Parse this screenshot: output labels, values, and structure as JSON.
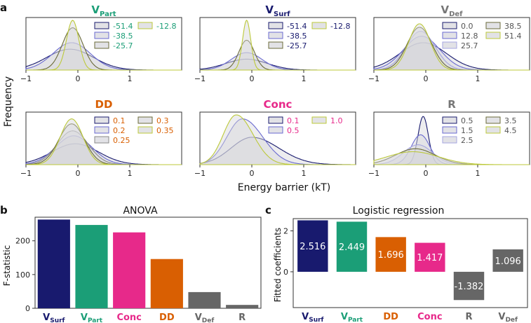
{
  "figure": {
    "ylabel_top": "Frequency",
    "xlabel_top": "Energy barrier (kT)"
  },
  "colors": {
    "navy": "#181a6e",
    "teal": "#1b9e77",
    "olive": "#6b6b3a",
    "orange": "#d95f02",
    "pink": "#e7298a",
    "gray": "#666666",
    "periwinkle": "#6a6ad0",
    "chartreuse": "#bcc93a",
    "fill": "#d6d6dc"
  },
  "chart_data": [
    {
      "panel_letter": "a",
      "type": "area",
      "title": "V_Part",
      "title_main": "V",
      "title_sub": "Part",
      "title_color": "#1b9e77",
      "xlim": [
        -1,
        2
      ],
      "x_ticks": [
        "−1",
        "0",
        "1"
      ],
      "legend_color": "#1b9e77",
      "series": [
        {
          "name": "-51.4",
          "center": -0.15,
          "width": 0.45,
          "peak": 0.42,
          "skew": 1.0,
          "color": "#181a6e"
        },
        {
          "name": "-38.5",
          "center": -0.12,
          "width": 0.36,
          "peak": 0.55,
          "skew": 1.0,
          "color": "#6a6ad0"
        },
        {
          "name": "-25.7",
          "center": -0.1,
          "width": 0.2,
          "peak": 0.85,
          "skew": 1.0,
          "color": "#6b6b3a"
        },
        {
          "name": "-12.8",
          "center": -0.1,
          "width": 0.12,
          "peak": 1.0,
          "skew": 1.0,
          "color": "#bcc93a"
        }
      ]
    },
    {
      "type": "area",
      "title": "V_Surf",
      "title_main": "V",
      "title_sub": "Surf",
      "title_color": "#181a6e",
      "xlim": [
        -1,
        2
      ],
      "x_ticks": [
        "−1",
        "0",
        "1"
      ],
      "legend_color": "#181a6e",
      "series": [
        {
          "name": "-51.4",
          "center": -0.1,
          "width": 0.4,
          "peak": 0.22,
          "skew": 1.0,
          "color": "#181a6e"
        },
        {
          "name": "-38.5",
          "center": -0.1,
          "width": 0.3,
          "peak": 0.35,
          "skew": 1.0,
          "color": "#6a6ad0"
        },
        {
          "name": "-25.7",
          "center": -0.1,
          "width": 0.15,
          "peak": 0.6,
          "skew": 1.0,
          "color": "#6b6b3a"
        },
        {
          "name": "-12.8",
          "center": -0.1,
          "width": 0.08,
          "peak": 1.0,
          "skew": 1.0,
          "color": "#bcc93a"
        }
      ]
    },
    {
      "type": "area",
      "title": "V_Def",
      "title_main": "V",
      "title_sub": "Def",
      "title_color": "#777777",
      "xlim": [
        -1,
        2
      ],
      "x_ticks": [
        "−1",
        "0",
        "1"
      ],
      "legend_color": "#555555",
      "series": [
        {
          "name": "0.0",
          "center": -0.05,
          "width": 0.45,
          "peak": 0.55,
          "skew": 1.0,
          "color": "#181a6e"
        },
        {
          "name": "12.8",
          "center": -0.08,
          "width": 0.35,
          "peak": 0.68,
          "skew": 1.0,
          "color": "#6a6ad0"
        },
        {
          "name": "25.7",
          "center": -0.1,
          "width": 0.28,
          "peak": 0.78,
          "skew": 1.0,
          "color": "#a5a5e0"
        },
        {
          "name": "38.5",
          "center": -0.12,
          "width": 0.24,
          "peak": 0.86,
          "skew": 1.0,
          "color": "#6b6b3a"
        },
        {
          "name": "51.4",
          "center": -0.12,
          "width": 0.21,
          "peak": 0.93,
          "skew": 1.0,
          "color": "#bcc93a"
        }
      ]
    },
    {
      "type": "area",
      "title": "DD",
      "title_main": "DD",
      "title_sub": "",
      "title_color": "#d95f02",
      "xlim": [
        -1,
        2
      ],
      "x_ticks": [
        "−1",
        "0",
        "1"
      ],
      "legend_color": "#d95f02",
      "series": [
        {
          "name": "0.1",
          "center": -0.05,
          "width": 0.45,
          "peak": 0.42,
          "skew": 1.0,
          "color": "#181a6e"
        },
        {
          "name": "0.2",
          "center": -0.08,
          "width": 0.35,
          "peak": 0.58,
          "skew": 1.0,
          "color": "#6a6ad0"
        },
        {
          "name": "0.25",
          "center": -0.1,
          "width": 0.3,
          "peak": 0.68,
          "skew": 1.0,
          "color": "#888888"
        },
        {
          "name": "0.3",
          "center": -0.12,
          "width": 0.25,
          "peak": 0.82,
          "skew": 1.0,
          "color": "#6b6b3a"
        },
        {
          "name": "0.35",
          "center": -0.12,
          "width": 0.22,
          "peak": 0.92,
          "skew": 1.0,
          "color": "#bcc93a"
        }
      ]
    },
    {
      "type": "area",
      "title": "Conc",
      "title_main": "Conc",
      "title_sub": "",
      "title_color": "#e7298a",
      "xlim": [
        -1,
        2
      ],
      "x_ticks": [
        "−1",
        "0",
        "1"
      ],
      "legend_color": "#e7298a",
      "series": [
        {
          "name": "0.1",
          "center": 0.0,
          "width": 0.4,
          "peak": 0.55,
          "skew": 1.3,
          "color": "#181a6e"
        },
        {
          "name": "0.5",
          "center": -0.18,
          "width": 0.3,
          "peak": 0.92,
          "skew": 1.3,
          "color": "#6a6ad0"
        },
        {
          "name": "1.0",
          "center": -0.3,
          "width": 0.25,
          "peak": 1.0,
          "skew": 1.3,
          "color": "#bcc93a"
        }
      ]
    },
    {
      "type": "area",
      "title": "R",
      "title_main": "R",
      "title_sub": "",
      "title_color": "#777777",
      "xlim": [
        -1,
        2
      ],
      "x_ticks": [
        "−1",
        "0",
        "1"
      ],
      "legend_color": "#555555",
      "series": [
        {
          "name": "0.5",
          "center": -0.05,
          "width": 0.1,
          "peak": 0.97,
          "skew": 1.0,
          "color": "#181a6e"
        },
        {
          "name": "1.5",
          "center": -0.1,
          "width": 0.18,
          "peak": 0.6,
          "skew": 1.0,
          "color": "#6a6ad0"
        },
        {
          "name": "2.5",
          "center": -0.15,
          "width": 0.28,
          "peak": 0.4,
          "skew": 1.0,
          "color": "#a5a5e0"
        },
        {
          "name": "3.5",
          "center": -0.2,
          "width": 0.38,
          "peak": 0.32,
          "skew": 1.0,
          "color": "#6b6b3a"
        },
        {
          "name": "4.5",
          "center": -0.25,
          "width": 0.5,
          "peak": 0.26,
          "skew": 1.0,
          "color": "#bcc93a"
        }
      ]
    },
    {
      "panel_letter": "b",
      "type": "bar",
      "title": "ANOVA",
      "ylabel": "F-statistic",
      "ylim": [
        0,
        270
      ],
      "y_ticks": [
        0,
        100,
        200
      ],
      "categories": [
        {
          "main": "V",
          "sub": "Surf",
          "label": "V_Surf",
          "value": 263,
          "color": "#181a6e",
          "label_color": "#181a6e"
        },
        {
          "main": "V",
          "sub": "Part",
          "label": "V_Part",
          "value": 247,
          "color": "#1b9e77",
          "label_color": "#1b9e77"
        },
        {
          "main": "Conc",
          "sub": "",
          "label": "Conc",
          "value": 225,
          "color": "#e7298a",
          "label_color": "#e7298a"
        },
        {
          "main": "DD",
          "sub": "",
          "label": "DD",
          "value": 146,
          "color": "#d95f02",
          "label_color": "#d95f02"
        },
        {
          "main": "V",
          "sub": "Def",
          "label": "V_Def",
          "value": 48,
          "color": "#666666",
          "label_color": "#666666"
        },
        {
          "main": "R",
          "sub": "",
          "label": "R",
          "value": 10,
          "color": "#666666",
          "label_color": "#666666"
        }
      ]
    },
    {
      "panel_letter": "c",
      "type": "bar",
      "title": "Logistic regression",
      "ylabel": "Fitted coefficients",
      "ylim": [
        -1.75,
        2.6
      ],
      "y_ticks": [
        0,
        2
      ],
      "categories": [
        {
          "main": "V",
          "sub": "Surf",
          "label": "V_Surf",
          "value": 2.516,
          "value_label": "2.516",
          "color": "#181a6e",
          "label_color": "#181a6e"
        },
        {
          "main": "V",
          "sub": "Part",
          "label": "V_Part",
          "value": 2.449,
          "value_label": "2.449",
          "color": "#1b9e77",
          "label_color": "#1b9e77"
        },
        {
          "main": "DD",
          "sub": "",
          "label": "DD",
          "value": 1.696,
          "value_label": "1.696",
          "color": "#d95f02",
          "label_color": "#d95f02"
        },
        {
          "main": "Conc",
          "sub": "",
          "label": "Conc",
          "value": 1.417,
          "value_label": "1.417",
          "color": "#e7298a",
          "label_color": "#e7298a"
        },
        {
          "main": "R",
          "sub": "",
          "label": "R",
          "value": -1.382,
          "value_label": "-1.382",
          "color": "#666666",
          "label_color": "#666666"
        },
        {
          "main": "V",
          "sub": "Def",
          "label": "V_Def",
          "value": 1.096,
          "value_label": "1.096",
          "color": "#666666",
          "label_color": "#666666"
        }
      ]
    }
  ]
}
